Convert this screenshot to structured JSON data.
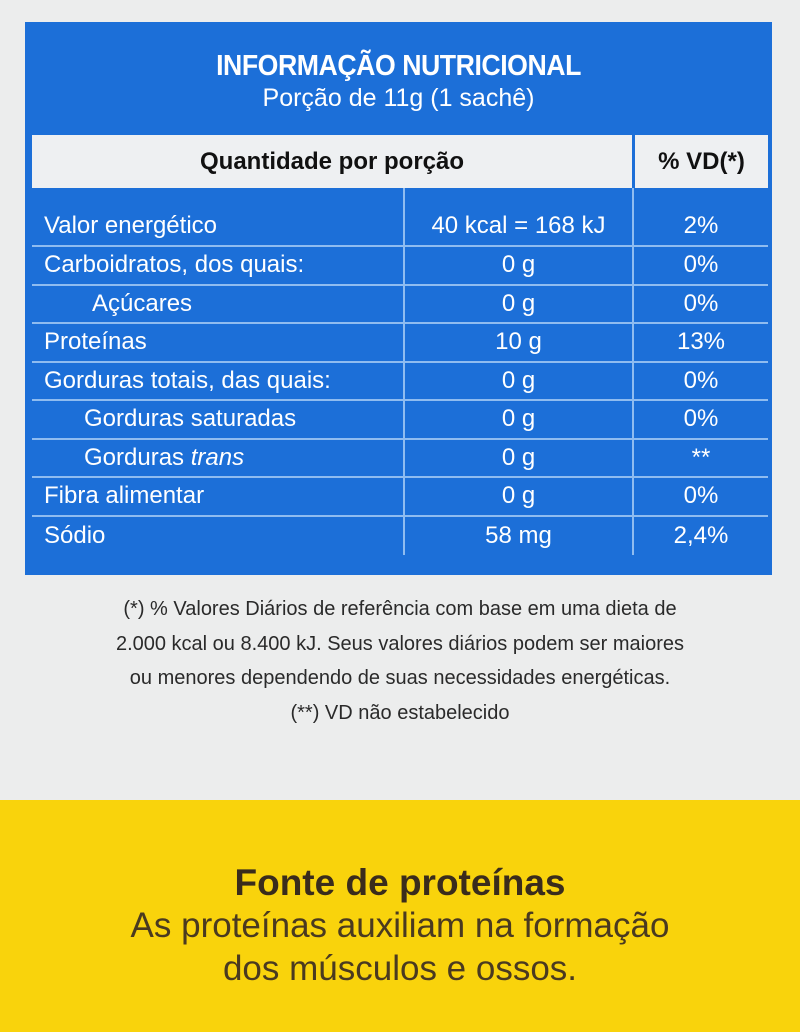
{
  "label": {
    "title": "INFORMAÇÃO NUTRICIONAL",
    "portion": "Porção de 11g (1 sachê)",
    "header_quantity": "Quantidade por porção",
    "header_vd": "% VD(*)",
    "rows": [
      {
        "name": "Valor energético",
        "amount": "40 kcal = 168 kJ",
        "vd": "2%"
      },
      {
        "name": "Carboidratos, dos quais:",
        "amount": "0 g",
        "vd": "0%"
      },
      {
        "name": "Açúcares",
        "amount": "0 g",
        "vd": "0%"
      },
      {
        "name": "Proteínas",
        "amount": "10 g",
        "vd": "13%"
      },
      {
        "name": "Gorduras totais, das quais:",
        "amount": "0 g",
        "vd": "0%"
      },
      {
        "name": "Gorduras saturadas",
        "amount": "0 g",
        "vd": "0%"
      },
      {
        "name": "Gorduras",
        "name_italic": "trans",
        "amount": "0 g",
        "vd": "**"
      },
      {
        "name": "Fibra alimentar",
        "amount": "0 g",
        "vd": "0%"
      },
      {
        "name": "Sódio",
        "amount": "58 mg",
        "vd": "2,4%"
      }
    ]
  },
  "footnotes": [
    "(*) % Valores Diários de referência com base em uma dieta de",
    "2.000 kcal ou 8.400 kJ. Seus valores diários podem ser maiores",
    "ou menores dependendo de suas necessidades energéticas.",
    "(**) VD não estabelecido"
  ],
  "claim": {
    "title": "Fonte de proteínas",
    "lines": [
      "As proteínas auxiliam na formação",
      "dos músculos e ossos."
    ]
  },
  "colors": {
    "panel_blue": "#1c6fd8",
    "banner_yellow": "#f9d30c"
  }
}
